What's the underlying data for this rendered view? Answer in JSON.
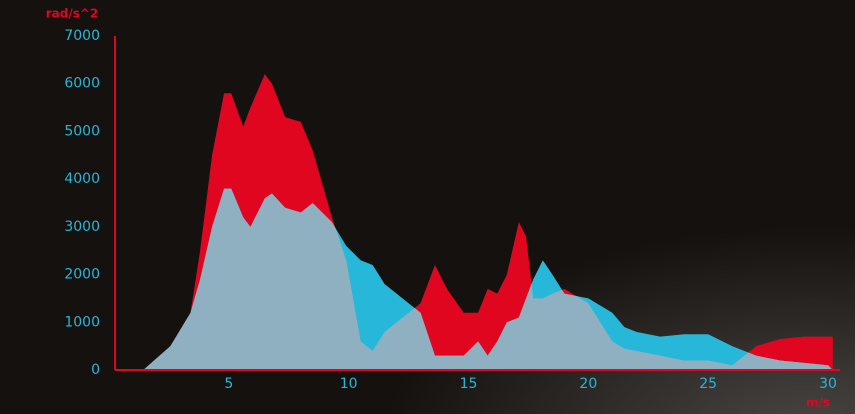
{
  "chart_data": {
    "type": "area",
    "y_label": "rad/s^2",
    "x_label": "m/s",
    "x": [
      1.43,
      2.56,
      3.4,
      3.8,
      4.3,
      4.8,
      5.1,
      5.6,
      5.9,
      6.5,
      6.8,
      7.35,
      8.0,
      8.5,
      9.3,
      9.9,
      10.5,
      11,
      11.5,
      12,
      12.5,
      13,
      13.6,
      14.1,
      14.8,
      15.4,
      15.8,
      16.2,
      16.6,
      17.1,
      17.4,
      17.7,
      18.1,
      18.5,
      19,
      20,
      21,
      21.5,
      22,
      23,
      24,
      25,
      26,
      27,
      28,
      29,
      30,
      30.2
    ],
    "series": [
      {
        "color": "#e0061f",
        "values": [
          0,
          500,
          1200,
          2500,
          4500,
          5800,
          5800,
          5100,
          5500,
          6200,
          6000,
          5300,
          5200,
          4600,
          3200,
          2300,
          600,
          400,
          800,
          1000,
          1200,
          1400,
          2200,
          1700,
          1200,
          1200,
          1700,
          1600,
          2000,
          3100,
          2800,
          1500,
          1500,
          1600,
          1700,
          1400,
          600,
          450,
          400,
          300,
          200,
          200,
          100,
          500,
          650,
          700,
          700,
          700
        ]
      },
      {
        "color": "#27b7d8",
        "values": [
          0,
          500,
          1200,
          1900,
          3000,
          3800,
          3800,
          3200,
          3000,
          3600,
          3700,
          3400,
          3300,
          3500,
          3100,
          2600,
          2300,
          2200,
          1800,
          1600,
          1400,
          1200,
          300,
          300,
          300,
          600,
          300,
          600,
          1000,
          1100,
          1500,
          1900,
          2300,
          2000,
          1600,
          1500,
          1200,
          900,
          800,
          700,
          750,
          750,
          500,
          300,
          200,
          150,
          100,
          0
        ]
      }
    ],
    "xlim": [
      0.25,
      30.5
    ],
    "ylim": [
      0,
      7000
    ],
    "xticks": [
      5,
      10,
      15,
      20,
      25,
      30
    ],
    "yticks": [
      0,
      1000,
      2000,
      3000,
      4000,
      5000,
      6000,
      7000
    ],
    "overlap_color": "#8fb0c0"
  }
}
